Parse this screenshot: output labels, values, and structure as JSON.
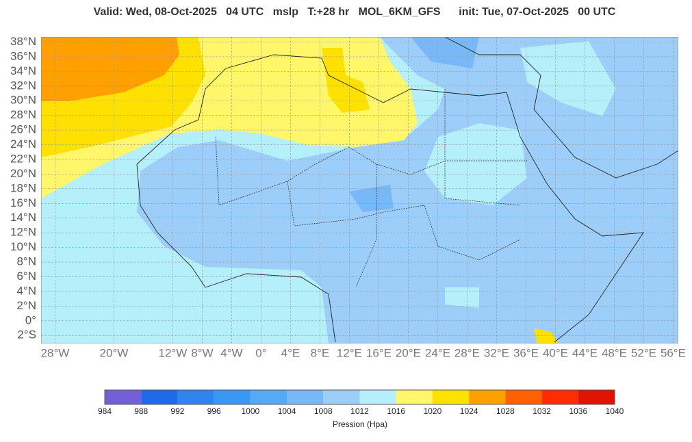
{
  "header": {
    "title": "Valid: Wed, 08-Oct-2025   04 UTC   mslp   T:+28 hr   MOL_6KM_GFS      init: Tue, 07-Oct-2025   00 UTC"
  },
  "map": {
    "lonlim": [
      -29.9,
      56.7
    ],
    "latlim": [
      -3.1,
      38.7
    ],
    "lon_ticks": [
      {
        "value": -28,
        "label": "28°W"
      },
      {
        "value": -20,
        "label": "20°W"
      },
      {
        "value": -12,
        "label": "12°W"
      },
      {
        "value": -8,
        "label": "8°W"
      },
      {
        "value": -4,
        "label": "4°W"
      },
      {
        "value": 0,
        "label": "0°"
      },
      {
        "value": 4,
        "label": "4°E"
      },
      {
        "value": 8,
        "label": "8°E"
      },
      {
        "value": 12,
        "label": "12°E"
      },
      {
        "value": 16,
        "label": "16°E"
      },
      {
        "value": 20,
        "label": "20°E"
      },
      {
        "value": 24,
        "label": "24°E"
      },
      {
        "value": 28,
        "label": "28°E"
      },
      {
        "value": 32,
        "label": "32°E"
      },
      {
        "value": 36,
        "label": "36°E"
      },
      {
        "value": 40,
        "label": "40°E"
      },
      {
        "value": 44,
        "label": "44°E"
      },
      {
        "value": 48,
        "label": "48°E"
      },
      {
        "value": 52,
        "label": "52°E"
      },
      {
        "value": 56,
        "label": "56°E"
      }
    ],
    "lat_ticks": [
      {
        "value": 38,
        "label": "38°N"
      },
      {
        "value": 36,
        "label": "36°N"
      },
      {
        "value": 34,
        "label": "34°N"
      },
      {
        "value": 32,
        "label": "32°N"
      },
      {
        "value": 30,
        "label": "30°N"
      },
      {
        "value": 28,
        "label": "28°N"
      },
      {
        "value": 26,
        "label": "26°N"
      },
      {
        "value": 24,
        "label": "24°N"
      },
      {
        "value": 22,
        "label": "22°N"
      },
      {
        "value": 20,
        "label": "20°N"
      },
      {
        "value": 18,
        "label": "18°N"
      },
      {
        "value": 16,
        "label": "16°N"
      },
      {
        "value": 14,
        "label": "14°N"
      },
      {
        "value": 12,
        "label": "12°N"
      },
      {
        "value": 10,
        "label": "10°N"
      },
      {
        "value": 8,
        "label": "8°N"
      },
      {
        "value": 6,
        "label": "6°N"
      },
      {
        "value": 4,
        "label": "4°N"
      },
      {
        "value": 2,
        "label": "2°N"
      },
      {
        "value": 0,
        "label": "0°"
      },
      {
        "value": -2,
        "label": "2°S"
      }
    ]
  },
  "colorbar": {
    "levels": [
      984,
      988,
      992,
      996,
      1000,
      1004,
      1008,
      1012,
      1016,
      1020,
      1024,
      1028,
      1032,
      1036,
      1040
    ],
    "colors": [
      "#7360d8",
      "#1f6ae8",
      "#2f84f0",
      "#3a98f5",
      "#55aaf5",
      "#78b8f7",
      "#9dcdf9",
      "#b4effa",
      "#fff66a",
      "#ffe100",
      "#ff9f00",
      "#ff6000",
      "#ff2c00",
      "#e01400"
    ],
    "label": "Pression (Hpa)"
  }
}
